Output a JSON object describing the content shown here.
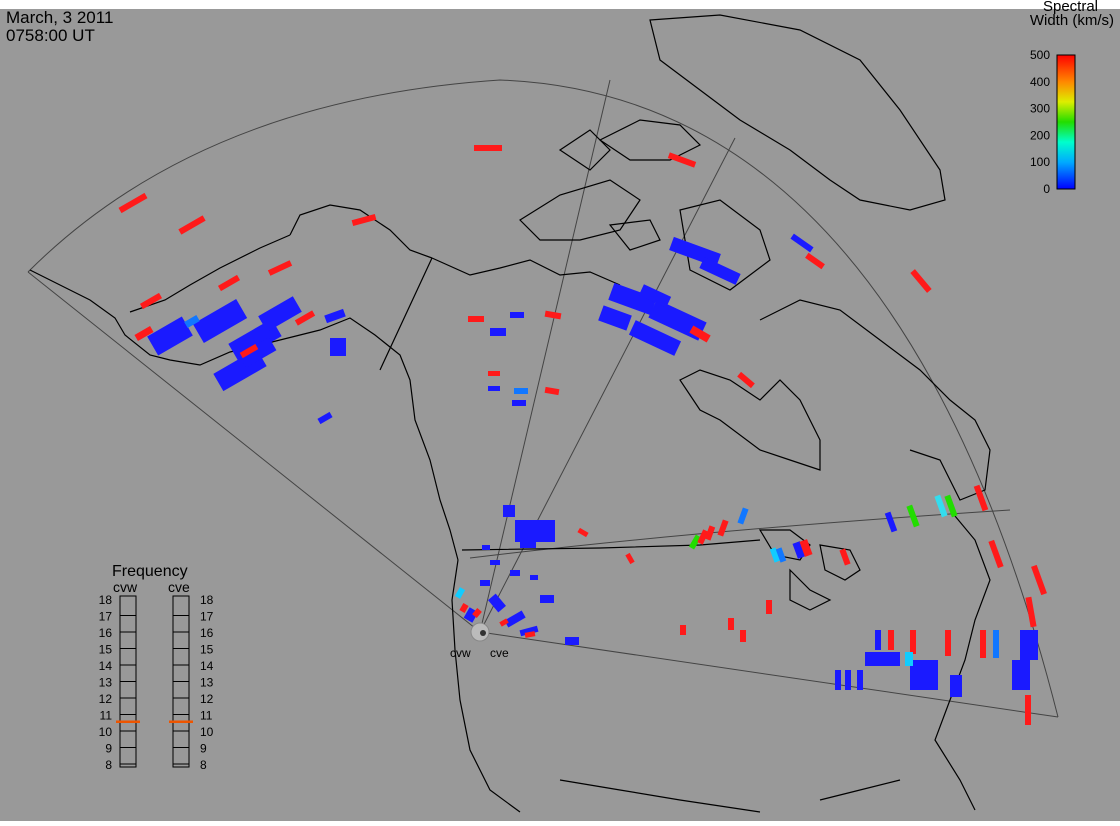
{
  "header": {
    "date": "March, 3 2011",
    "time": "0758:00 UT"
  },
  "colorbar": {
    "title_line1": "Spectral",
    "title_line2": "Width (km/s)",
    "ticks": [
      "500",
      "400",
      "300",
      "200",
      "100",
      "0"
    ],
    "range": [
      0,
      500
    ]
  },
  "radars": [
    {
      "code": "cvw",
      "label": "cvw",
      "frequency_mhz": 10.8
    },
    {
      "code": "cve",
      "label": "cve",
      "frequency_mhz": 10.8
    }
  ],
  "frequency_panel": {
    "title": "Frequency",
    "scale": [
      "18",
      "17",
      "16",
      "15",
      "14",
      "13",
      "12",
      "11",
      "10",
      "9",
      "8"
    ],
    "range_mhz": [
      8,
      18
    ],
    "marker_color": "#ee5500"
  },
  "colors": {
    "background": "#999999",
    "coast": "#000000",
    "fov": "#444444",
    "low_width": "#1a1aff",
    "high_width": "#ff1a1a"
  }
}
